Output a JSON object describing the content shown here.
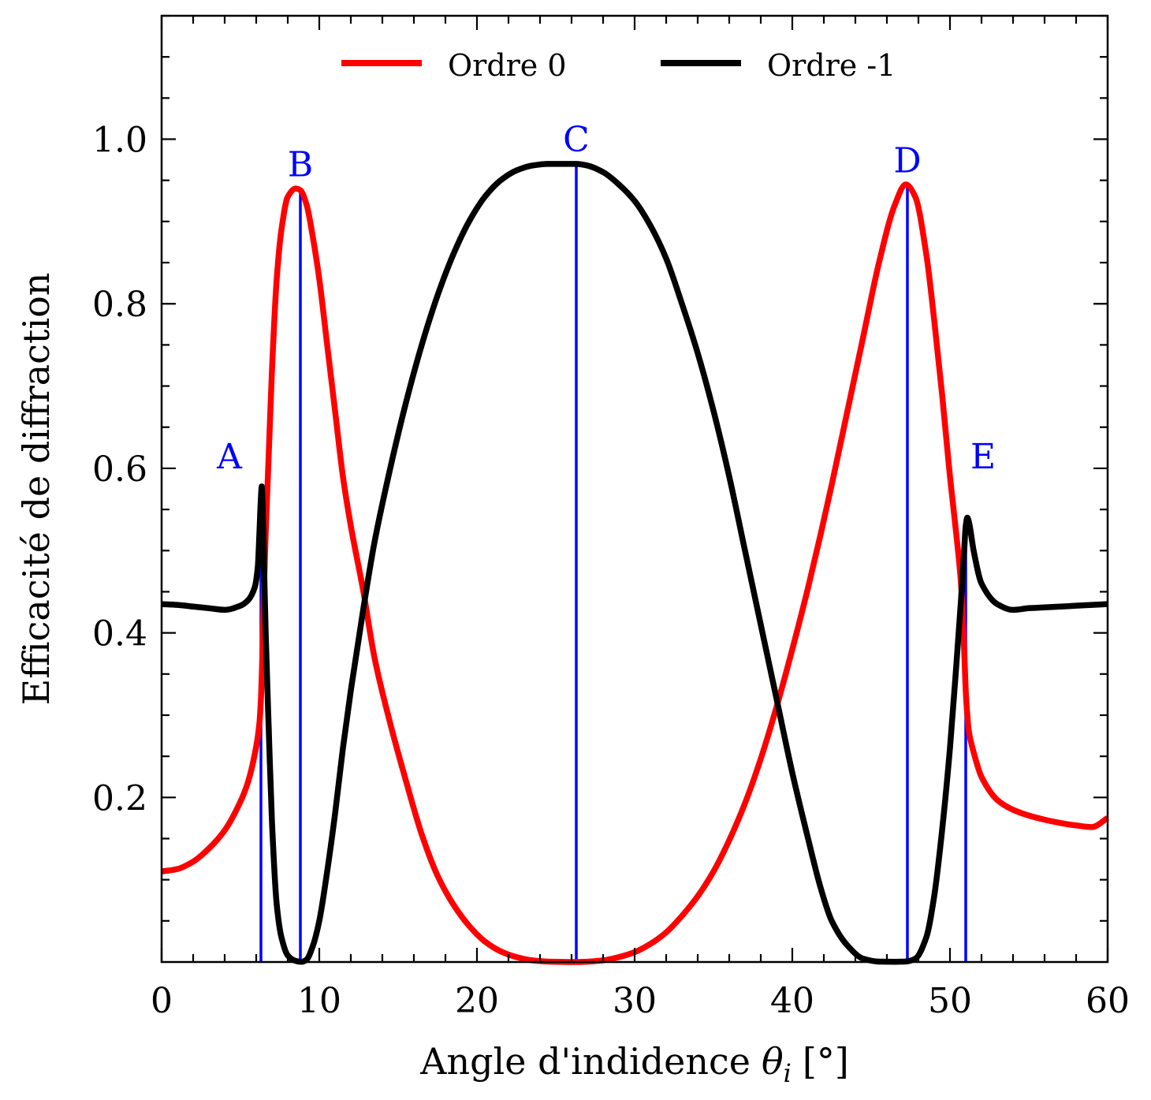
{
  "chart_data": {
    "type": "line",
    "title": "",
    "xlabel": "Angle d'indidence",
    "xlabel_symbol": "θ",
    "xlabel_subscript": "i",
    "xlabel_unit": "[°]",
    "ylabel": "Efficacité de diffraction",
    "xlim": [
      0,
      60
    ],
    "ylim": [
      0,
      1.15
    ],
    "xticks": [
      0,
      10,
      20,
      30,
      40,
      50,
      60
    ],
    "xtick_labels": [
      "0",
      "10",
      "20",
      "30",
      "40",
      "50",
      "60"
    ],
    "yticks": [
      0.2,
      0.4,
      0.6,
      0.8,
      1.0
    ],
    "ytick_labels": [
      "0.2",
      "0.4",
      "0.6",
      "0.8",
      "1.0"
    ],
    "grid": false,
    "legend_position": "top-center",
    "series": [
      {
        "name": "Ordre 0",
        "color": "#ff0000",
        "x": [
          0,
          1,
          2,
          3,
          4,
          5,
          5.5,
          6,
          6.2,
          6.3,
          6.4,
          6.5,
          6.6,
          6.8,
          7,
          7.3,
          7.6,
          8,
          8.5,
          8.8,
          9.2,
          9.6,
          10,
          10.5,
          11,
          11.5,
          12,
          12.8,
          13.5,
          14.5,
          15.5,
          16.5,
          17.5,
          18.5,
          19.5,
          20.5,
          21.5,
          22.5,
          23.5,
          24.5,
          25.5,
          26.3,
          27,
          28,
          29,
          30,
          31,
          32,
          33,
          34,
          35,
          36,
          37,
          38,
          39,
          40,
          41,
          41.8,
          42.5,
          43.5,
          44.5,
          45.5,
          46.5,
          47.2,
          47.8,
          48.5,
          49,
          49.5,
          50,
          50.4,
          50.7,
          50.9,
          51,
          51.1,
          51.2,
          51.5,
          52,
          53,
          54,
          55,
          56,
          57,
          58,
          59,
          60
        ],
        "y": [
          0.11,
          0.113,
          0.122,
          0.138,
          0.16,
          0.195,
          0.22,
          0.262,
          0.29,
          0.32,
          0.38,
          0.46,
          0.52,
          0.62,
          0.72,
          0.83,
          0.89,
          0.93,
          0.94,
          0.938,
          0.92,
          0.88,
          0.83,
          0.75,
          0.67,
          0.59,
          0.53,
          0.45,
          0.37,
          0.29,
          0.22,
          0.155,
          0.105,
          0.07,
          0.044,
          0.025,
          0.013,
          0.006,
          0.002,
          0.0005,
          0.0001,
          0.0,
          0.0004,
          0.002,
          0.006,
          0.012,
          0.022,
          0.036,
          0.056,
          0.08,
          0.11,
          0.148,
          0.193,
          0.247,
          0.31,
          0.38,
          0.455,
          0.52,
          0.58,
          0.67,
          0.76,
          0.85,
          0.92,
          0.945,
          0.93,
          0.86,
          0.78,
          0.69,
          0.59,
          0.52,
          0.46,
          0.38,
          0.33,
          0.3,
          0.28,
          0.255,
          0.225,
          0.197,
          0.185,
          0.178,
          0.173,
          0.169,
          0.166,
          0.164,
          0.175
        ]
      },
      {
        "name": "Ordre -1",
        "color": "#000000",
        "x": [
          0,
          1,
          2,
          3,
          4,
          5,
          5.5,
          5.9,
          6.1,
          6.2,
          6.3,
          6.35,
          6.4,
          6.5,
          6.6,
          6.8,
          7,
          7.3,
          7.6,
          8,
          8.4,
          8.7,
          8.9,
          9.2,
          9.6,
          10,
          10.5,
          11,
          11.5,
          12,
          12.8,
          13.5,
          14.5,
          15.5,
          16.5,
          17.5,
          18.5,
          19.5,
          20.5,
          21.5,
          22.5,
          23.5,
          24.5,
          25.5,
          26.3,
          27,
          28,
          29,
          30,
          31,
          32,
          33,
          34,
          35,
          36,
          37,
          38,
          39,
          40,
          41,
          41.8,
          42.5,
          43.5,
          44.5,
          45.5,
          46.5,
          47.2,
          47.8,
          48.5,
          49,
          49.5,
          50,
          50.4,
          50.7,
          50.9,
          51,
          51.1,
          51.2,
          51.5,
          52,
          53,
          54,
          55,
          56,
          57,
          58,
          59,
          60
        ],
        "y": [
          0.435,
          0.434,
          0.432,
          0.43,
          0.428,
          0.433,
          0.44,
          0.455,
          0.48,
          0.52,
          0.565,
          0.578,
          0.56,
          0.48,
          0.4,
          0.28,
          0.17,
          0.07,
          0.03,
          0.008,
          0.002,
          0.0005,
          0.0003,
          0.003,
          0.02,
          0.05,
          0.11,
          0.18,
          0.26,
          0.33,
          0.43,
          0.51,
          0.6,
          0.68,
          0.75,
          0.81,
          0.86,
          0.9,
          0.93,
          0.95,
          0.962,
          0.968,
          0.97,
          0.97,
          0.97,
          0.968,
          0.96,
          0.945,
          0.925,
          0.895,
          0.855,
          0.8,
          0.74,
          0.67,
          0.59,
          0.5,
          0.41,
          0.32,
          0.23,
          0.15,
          0.09,
          0.05,
          0.02,
          0.004,
          0.0005,
          0.0003,
          0.0006,
          0.004,
          0.03,
          0.08,
          0.16,
          0.26,
          0.36,
          0.44,
          0.5,
          0.53,
          0.54,
          0.535,
          0.5,
          0.46,
          0.435,
          0.428,
          0.43,
          0.431,
          0.432,
          0.433,
          0.434,
          0.435
        ]
      }
    ],
    "vertical_markers": [
      {
        "label": "A",
        "x": 6.3,
        "y": 0.578,
        "label_x": 4.3,
        "label_y": 0.6,
        "color": "#0000ff"
      },
      {
        "label": "B",
        "x": 8.8,
        "y": 0.94,
        "label_x": 8.8,
        "label_y": 0.955,
        "color": "#0000ff"
      },
      {
        "label": "C",
        "x": 26.3,
        "y": 0.97,
        "label_x": 26.3,
        "label_y": 0.985,
        "color": "#0000ff"
      },
      {
        "label": "D",
        "x": 47.3,
        "y": 0.945,
        "label_x": 47.3,
        "label_y": 0.96,
        "color": "#0000ff"
      },
      {
        "label": "E",
        "x": 51.0,
        "y": 0.54,
        "label_x": 52.1,
        "label_y": 0.6,
        "color": "#0000ff"
      }
    ]
  }
}
